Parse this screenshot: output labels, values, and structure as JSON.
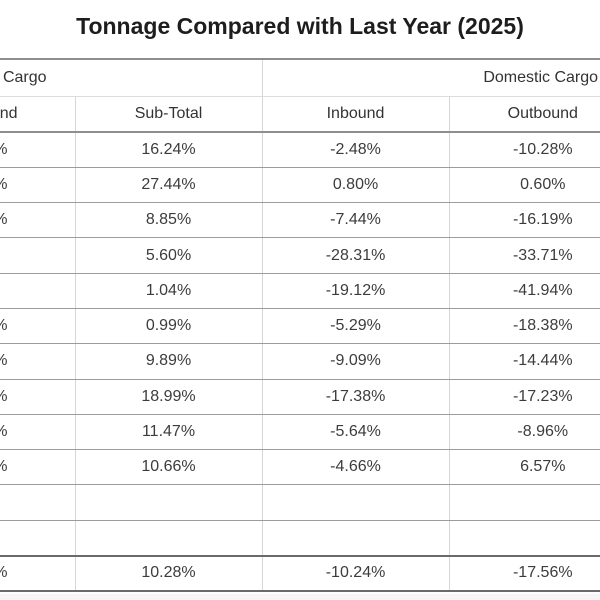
{
  "title": "Tonnage Compared with Last Year (2025)",
  "colors": {
    "background": "#ffffff",
    "title_text": "#1d1d1d",
    "cell_text": "#3c3c3c",
    "heavy_rule": "#6a6a6a",
    "medium_rule": "#8e8e8e",
    "row_rule": "#9c9c9c",
    "column_rule": "#d6d6d6"
  },
  "table": {
    "group_headers": {
      "left_group_visible_fragment": "Cargo",
      "right_group": "Domestic Cargo"
    },
    "column_headers": {
      "col1_visible_fragment": "nd",
      "sub_total": "Sub-Total",
      "inbound": "Inbound",
      "outbound": "Outbound"
    },
    "rows": [
      {
        "type": "data",
        "col1_fragment": "%",
        "sub_total": "16.24%",
        "inbound": "-2.48%",
        "outbound": "-10.28%"
      },
      {
        "type": "data",
        "col1_fragment": "%",
        "sub_total": "27.44%",
        "inbound": "0.80%",
        "outbound": "0.60%"
      },
      {
        "type": "data",
        "col1_fragment": "%",
        "sub_total": "8.85%",
        "inbound": "-7.44%",
        "outbound": "-16.19%"
      },
      {
        "type": "data",
        "col1_fragment": "",
        "sub_total": "5.60%",
        "inbound": "-28.31%",
        "outbound": "-33.71%"
      },
      {
        "type": "data",
        "col1_fragment": "",
        "sub_total": "1.04%",
        "inbound": "-19.12%",
        "outbound": "-41.94%"
      },
      {
        "type": "data",
        "col1_fragment": "%",
        "sub_total": "0.99%",
        "inbound": "-5.29%",
        "outbound": "-18.38%"
      },
      {
        "type": "data",
        "col1_fragment": "%",
        "sub_total": "9.89%",
        "inbound": "-9.09%",
        "outbound": "-14.44%"
      },
      {
        "type": "data",
        "col1_fragment": "%",
        "sub_total": "18.99%",
        "inbound": "-17.38%",
        "outbound": "-17.23%"
      },
      {
        "type": "data",
        "col1_fragment": "%",
        "sub_total": "11.47%",
        "inbound": "-5.64%",
        "outbound": "-8.96%"
      },
      {
        "type": "data",
        "col1_fragment": "%",
        "sub_total": "10.66%",
        "inbound": "-4.66%",
        "outbound": "6.57%"
      },
      {
        "type": "empty",
        "col1_fragment": "",
        "sub_total": "",
        "inbound": "",
        "outbound": ""
      },
      {
        "type": "empty",
        "col1_fragment": "",
        "sub_total": "",
        "inbound": "",
        "outbound": ""
      },
      {
        "type": "total",
        "col1_fragment": "%",
        "sub_total": "10.28%",
        "inbound": "-10.24%",
        "outbound": "-17.56%"
      }
    ]
  }
}
